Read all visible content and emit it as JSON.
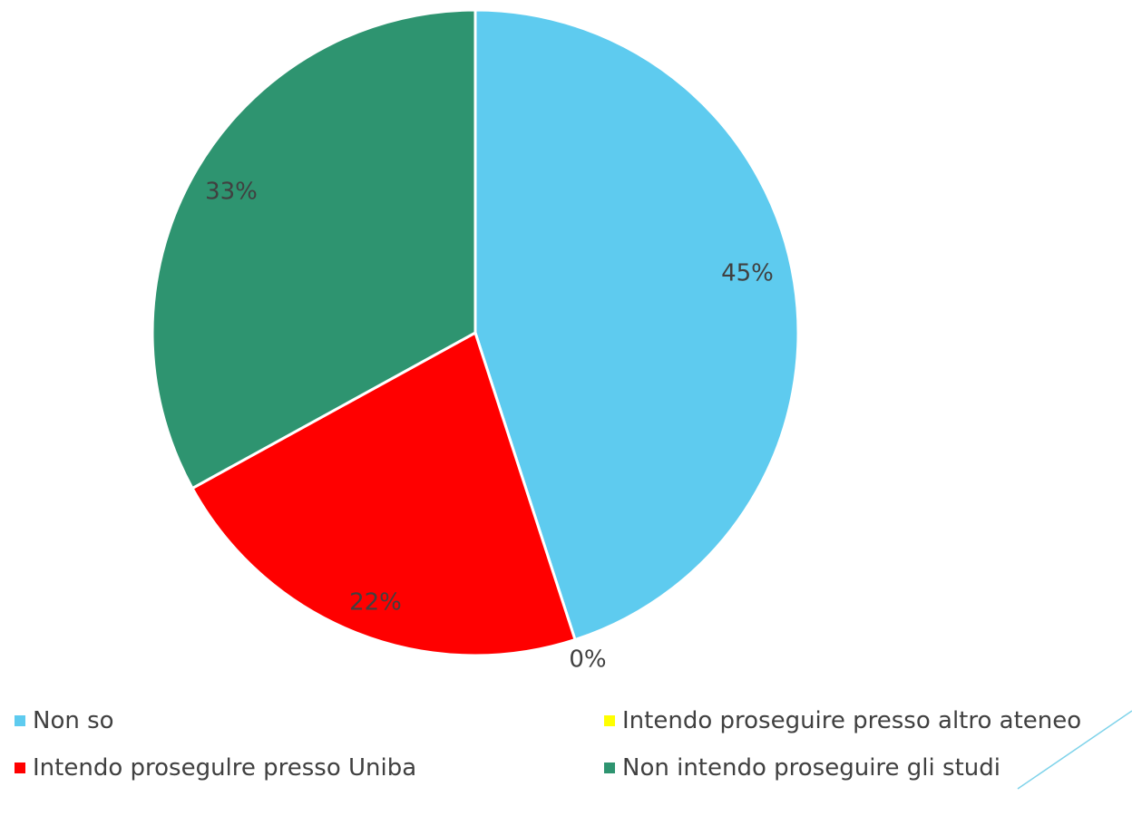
{
  "chart_data": {
    "type": "pie",
    "categories": [
      "Non so",
      "Intendo proseguire presso altro ateneo",
      "Intendo prosegulre presso Uniba",
      "Non intendo proseguire gli studi"
    ],
    "values": [
      45,
      0,
      22,
      33
    ],
    "data_labels": [
      "45%",
      "0%",
      "22%",
      "33%"
    ],
    "colors": [
      "#5ECBEF",
      "#FFFF00",
      "#FF0000",
      "#2E9470"
    ],
    "legend_position": "bottom"
  }
}
